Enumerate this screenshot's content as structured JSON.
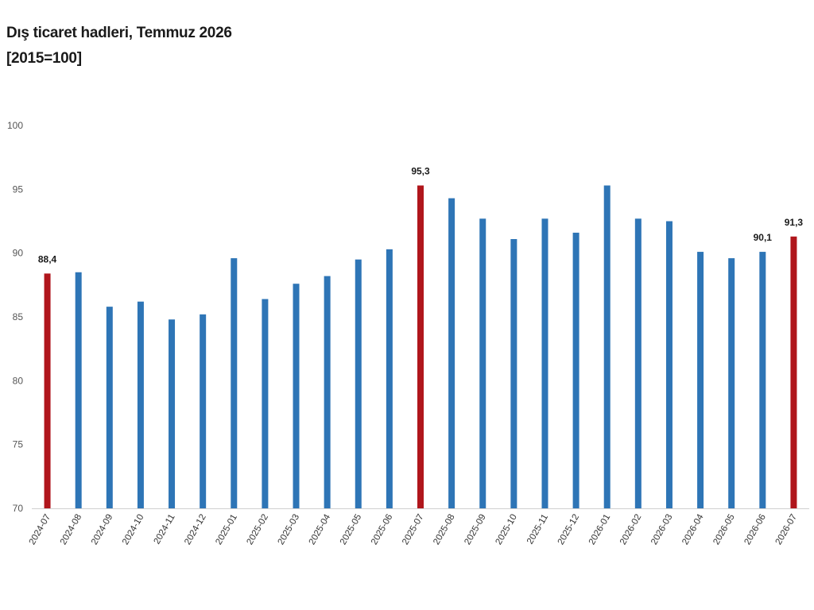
{
  "header": {
    "title": "Dış ticaret hadleri, Temmuz 2026",
    "subtitle": "[2015=100]"
  },
  "chart_data": {
    "type": "bar",
    "title": "Dış ticaret hadleri, Temmuz 2026",
    "subtitle": "[2015=100]",
    "categories": [
      "2024-07",
      "2024-08",
      "2024-09",
      "2024-10",
      "2024-11",
      "2024-12",
      "2025-01",
      "2025-02",
      "2025-03",
      "2025-04",
      "2025-05",
      "2025-06",
      "2025-07",
      "2025-08",
      "2025-09",
      "2025-10",
      "2025-11",
      "2025-12",
      "2026-01",
      "2026-02",
      "2026-03",
      "2026-04",
      "2026-05",
      "2026-06",
      "2026-07"
    ],
    "values": [
      88.4,
      88.5,
      85.8,
      86.2,
      84.8,
      85.2,
      89.6,
      86.4,
      87.6,
      88.2,
      89.5,
      90.3,
      95.3,
      94.3,
      92.7,
      91.1,
      92.7,
      91.6,
      95.3,
      92.7,
      92.5,
      90.1,
      89.6,
      90.1,
      91.3
    ],
    "highlighted": [
      "2024-07",
      "2025-07",
      "2026-07"
    ],
    "data_labels": [
      {
        "category": "2024-07",
        "text": "88,4"
      },
      {
        "category": "2025-07",
        "text": "95,3"
      },
      {
        "category": "2026-06",
        "text": "90,1"
      },
      {
        "category": "2026-07",
        "text": "91,3"
      }
    ],
    "yticks": [
      "70",
      "75",
      "80",
      "85",
      "90",
      "95",
      "100"
    ],
    "ylim": [
      70,
      100
    ],
    "xlabel": "",
    "ylabel": "",
    "grid": false,
    "legend": "none",
    "colors": {
      "default": "#2e75b6",
      "highlight": "#b0161c"
    }
  }
}
